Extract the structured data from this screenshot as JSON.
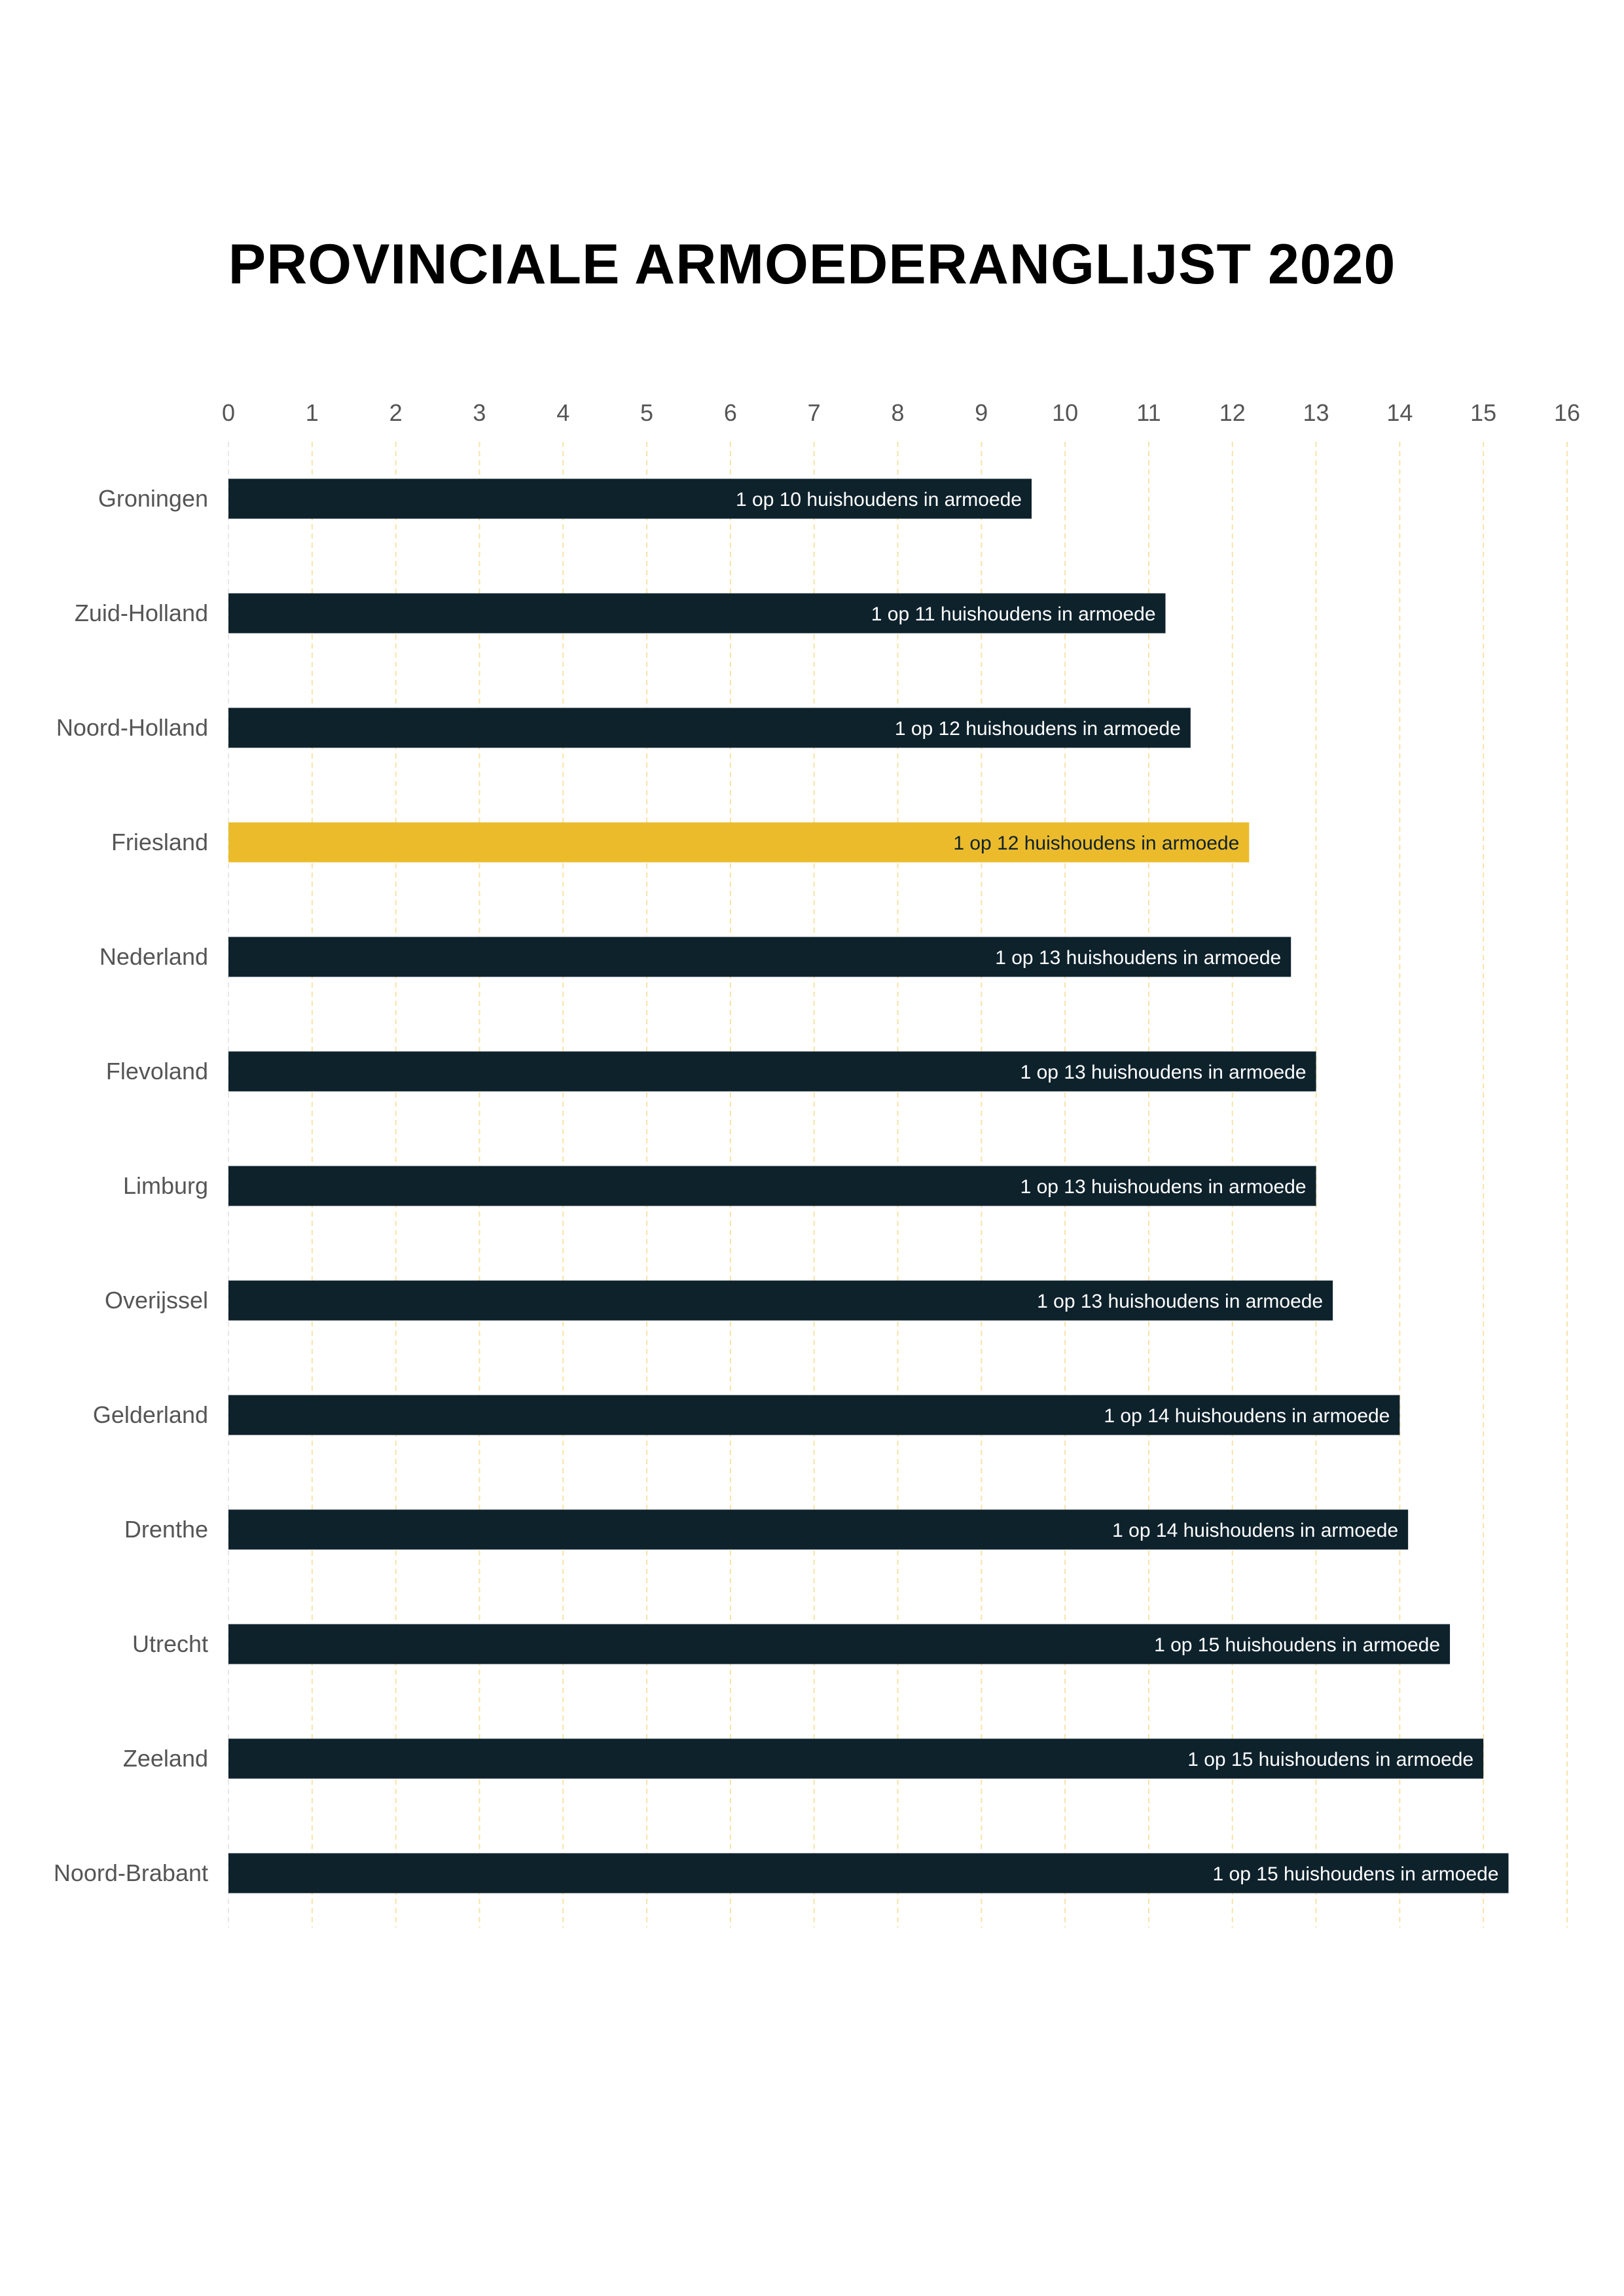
{
  "chart_data": {
    "type": "bar",
    "orientation": "horizontal",
    "title": "PROVINCIALE ARMOEDERANGLIJST 2020",
    "xlabel": "",
    "ylabel": "",
    "xlim": [
      0,
      16
    ],
    "xticks": [
      "0",
      "1",
      "2",
      "3",
      "4",
      "5",
      "6",
      "7",
      "8",
      "9",
      "10",
      "11",
      "12",
      "13",
      "14",
      "15",
      "16"
    ],
    "grid": "vertical",
    "categories": [
      "Groningen",
      "Zuid-Holland",
      "Noord-Holland",
      "Friesland",
      "Nederland",
      "Flevoland",
      "Limburg",
      "Overijssel",
      "Gelderland",
      "Drenthe",
      "Utrecht",
      "Zeeland",
      "Noord-Brabant"
    ],
    "values": [
      9.6,
      11.2,
      11.5,
      12.2,
      12.7,
      13.0,
      13.0,
      13.2,
      14.0,
      14.1,
      14.6,
      15.0,
      15.3
    ],
    "data_labels": [
      "1 op 10 huishoudens in armoede",
      "1 op 11 huishoudens in armoede",
      "1 op 12 huishoudens in armoede",
      "1 op 12 huishoudens in armoede",
      "1 op 13 huishoudens in armoede",
      "1 op 13 huishoudens in armoede",
      "1 op 13 huishoudens in armoede",
      "1 op 13 huishoudens in armoede",
      "1 op 14 huishoudens in armoede",
      "1 op 14 huishoudens in armoede",
      "1 op 15 huishoudens in armoede",
      "1 op 15 huishoudens in armoede",
      "1 op 15 huishoudens in armoede"
    ],
    "highlight": "Friesland",
    "colors": {
      "bar": "#0e222c",
      "highlight": "#ebbb2c",
      "grid": "#f7e3a8",
      "label_on_dark": "#ffffff",
      "label_on_highlight": "#0e222c"
    }
  }
}
